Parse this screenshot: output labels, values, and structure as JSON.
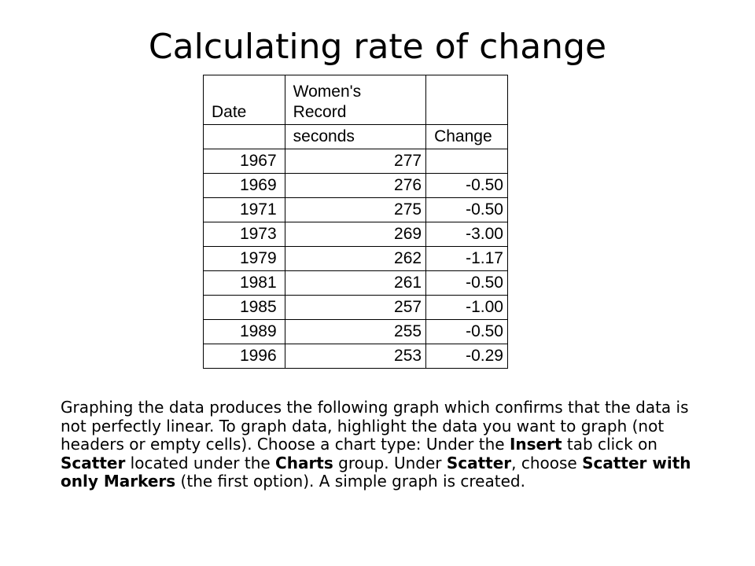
{
  "title": "Calculating rate of change",
  "table": {
    "headers": {
      "col1": "Date",
      "col2": "Women's Record",
      "col2_unit": "seconds",
      "col3_unit": "Change"
    },
    "rows": [
      {
        "date": "1967",
        "record": "277",
        "change": ""
      },
      {
        "date": "1969",
        "record": "276",
        "change": "-0.50"
      },
      {
        "date": "1971",
        "record": "275",
        "change": "-0.50"
      },
      {
        "date": "1973",
        "record": "269",
        "change": "-3.00"
      },
      {
        "date": "1979",
        "record": "262",
        "change": "-1.17"
      },
      {
        "date": "1981",
        "record": "261",
        "change": "-0.50"
      },
      {
        "date": "1985",
        "record": "257",
        "change": "-1.00"
      },
      {
        "date": "1989",
        "record": "255",
        "change": "-0.50"
      },
      {
        "date": "1996",
        "record": "253",
        "change": "-0.29"
      }
    ]
  },
  "paragraph": {
    "p1": "Graphing the data produces the following graph which confirms that the data is not perfectly linear. To graph data, highlight the data you want to graph (not headers or empty cells).  Choose a chart type:  Under the ",
    "b1": "Insert",
    "p2": " tab click on ",
    "b2": "Scatter",
    "p3": " located under the ",
    "b3": "Charts",
    "p4": " group. Under ",
    "b4": "Scatter",
    "p5": ", choose ",
    "b5": "Scatter with only Markers",
    "p6": " (the first option). A simple graph is created."
  }
}
